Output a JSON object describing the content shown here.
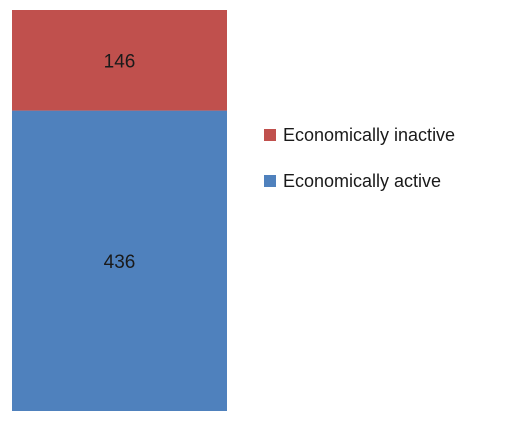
{
  "chart_data": {
    "type": "bar",
    "stacked": true,
    "categories": [
      ""
    ],
    "series": [
      {
        "name": "Economically active",
        "values": [
          436
        ],
        "color": "#4F81BD"
      },
      {
        "name": "Economically inactive",
        "values": [
          146
        ],
        "color": "#C0504D"
      }
    ],
    "data_labels": [
      "436",
      "146"
    ],
    "ylim": [
      0,
      582
    ],
    "grid": false,
    "legend": "right",
    "legend_order": [
      "Economically inactive",
      "Economically active"
    ]
  }
}
